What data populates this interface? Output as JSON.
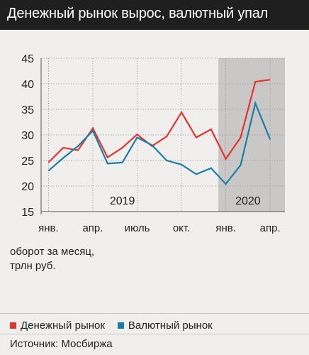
{
  "header": {
    "title": "Денежный рынок вырос, валютный упал"
  },
  "chart_data": {
    "type": "line",
    "x": [
      "янв. 2019",
      "фев. 2019",
      "мар. 2019",
      "апр. 2019",
      "май 2019",
      "июнь 2019",
      "июль 2019",
      "авг. 2019",
      "сен. 2019",
      "окт. 2019",
      "ноя. 2019",
      "дек. 2019",
      "янв. 2020",
      "фев. 2020",
      "мар. 2020",
      "апр. 2020"
    ],
    "series": [
      {
        "name": "Денежный рынок",
        "color": "#e2352f",
        "values": [
          24.6,
          27.5,
          27.0,
          31.3,
          25.6,
          27.5,
          30.1,
          27.8,
          29.7,
          34.4,
          29.5,
          31.1,
          25.3,
          29.5,
          40.4,
          40.8
        ]
      },
      {
        "name": "Валютный рынок",
        "color": "#1a7ea6",
        "values": [
          23.0,
          25.5,
          27.8,
          30.8,
          24.4,
          24.6,
          29.5,
          28.0,
          25.0,
          24.2,
          22.3,
          23.5,
          20.4,
          24.1,
          36.2,
          29.1
        ]
      }
    ],
    "ylim": [
      15,
      45
    ],
    "yticks": [
      "15",
      "20",
      "25",
      "30",
      "35",
      "40",
      "45"
    ],
    "xtick_labels": [
      {
        "index": 0,
        "label": "янв."
      },
      {
        "index": 3,
        "label": "апр."
      },
      {
        "index": 6,
        "label": "июль"
      },
      {
        "index": 9,
        "label": "окт."
      },
      {
        "index": 12,
        "label": "янв."
      },
      {
        "index": 15,
        "label": "апр."
      }
    ],
    "period_labels": [
      {
        "label": "2019",
        "center_index": 5
      },
      {
        "label": "2020",
        "center_index": 13.5
      }
    ],
    "shaded_region": {
      "from_index": 11.5,
      "to_index": 16.5,
      "color": "#c9c8c7"
    },
    "grid": "vertical-and-horizontal",
    "legend_placement": "bottom"
  },
  "unit_note": {
    "line1": "оборот за месяц,",
    "line2": "трлн руб."
  },
  "legend": {
    "items": [
      {
        "label": "Денежный рынок",
        "color": "#e2352f"
      },
      {
        "label": "Валютный рынок",
        "color": "#1a7ea6"
      }
    ]
  },
  "source": "Источник: Мосбиржа"
}
